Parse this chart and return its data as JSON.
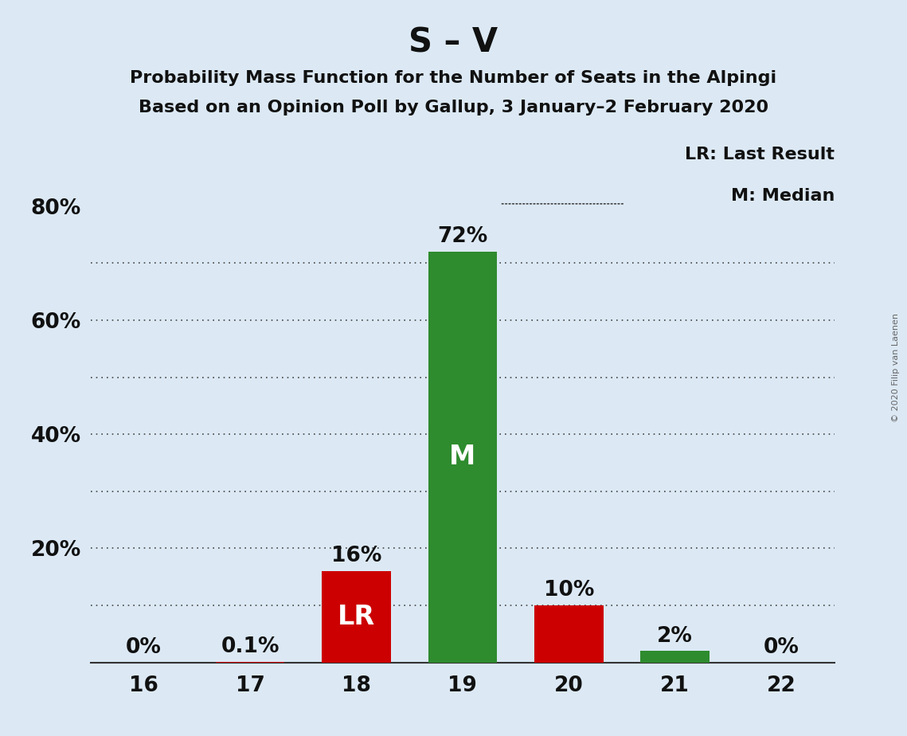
{
  "title": "S – V",
  "subtitle1": "Probability Mass Function for the Number of Seats in the Alpingi",
  "subtitle2": "Based on an Opinion Poll by Gallup, 3 January–2 February 2020",
  "watermark": "© 2020 Filip van Laenen",
  "categories": [
    16,
    17,
    18,
    19,
    20,
    21,
    22
  ],
  "values": [
    0.0,
    0.1,
    16.0,
    72.0,
    10.0,
    2.0,
    0.0
  ],
  "bar_colors": [
    "#cc0000",
    "#cc0000",
    "#cc0000",
    "#2e8b2e",
    "#cc0000",
    "#2e8b2e",
    "#cc0000"
  ],
  "value_labels": [
    "0%",
    "0.1%",
    "16%",
    "72%",
    "10%",
    "2%",
    "0%"
  ],
  "bar_labels": [
    "",
    "",
    "LR",
    "M",
    "",
    "",
    ""
  ],
  "ylim": [
    0,
    80
  ],
  "shown_ytick_values": [
    20,
    40,
    60,
    80
  ],
  "background_color": "#dce9f5",
  "grid_color": "#444444",
  "title_fontsize": 30,
  "subtitle_fontsize": 16,
  "legend_fontsize": 16,
  "bar_label_fontsize": 24,
  "value_label_fontsize": 19,
  "tick_fontsize": 19,
  "legend_text1": "LR: Last Result",
  "legend_text2": "M: Median",
  "dotted_line_yticks": [
    10,
    20,
    30,
    40,
    50,
    60,
    70
  ]
}
